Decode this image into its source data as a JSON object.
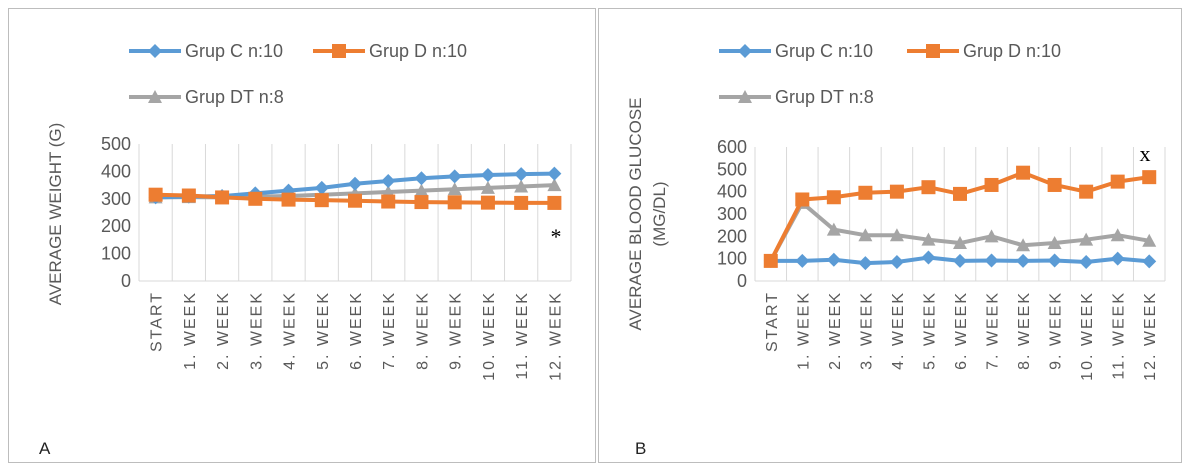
{
  "chart_data": [
    {
      "panel_label": "A",
      "type": "line",
      "ylabel": "AVERAGE WEIGHT (G)",
      "xlabel": "",
      "categories": [
        "START",
        "1. WEEK",
        "2. WEEK",
        "3. WEEK",
        "4. WEEK",
        "5. WEEK",
        "6. WEEK",
        "7. WEEK",
        "8. WEEK",
        "9. WEEK",
        "10. WEEK",
        "11. WEEK",
        "12. WEEK"
      ],
      "ylim": [
        0,
        500
      ],
      "yticks": [
        0,
        100,
        200,
        300,
        400,
        500
      ],
      "grid": "vertical",
      "legend": "top",
      "annotation": "*",
      "series": [
        {
          "name": "Grup C n:10",
          "color": "#5b9bd5",
          "marker": "diamond",
          "values": [
            305,
            308,
            310,
            320,
            330,
            340,
            355,
            365,
            375,
            382,
            387,
            390,
            392
          ]
        },
        {
          "name": "Grup D n:10",
          "color": "#ed7d31",
          "marker": "square",
          "values": [
            315,
            312,
            305,
            300,
            297,
            295,
            293,
            290,
            288,
            287,
            286,
            285,
            285
          ]
        },
        {
          "name": "Grup DT n:8",
          "color": "#a5a5a5",
          "marker": "triangle",
          "values": [
            305,
            306,
            305,
            308,
            310,
            315,
            320,
            325,
            330,
            335,
            340,
            345,
            350
          ]
        }
      ]
    },
    {
      "panel_label": "B",
      "type": "line",
      "ylabel": "AVERAGE BLOOD GLUCOSE (MG/DL)",
      "xlabel": "",
      "categories": [
        "START",
        "1. WEEK",
        "2. WEEK",
        "3. WEEK",
        "4. WEEK",
        "5. WEEK",
        "6. WEEK",
        "7. WEEK",
        "8. WEEK",
        "9. WEEK",
        "10. WEEK",
        "11. WEEK",
        "12. WEEK"
      ],
      "ylim": [
        0,
        600
      ],
      "yticks": [
        0,
        100,
        200,
        300,
        400,
        500,
        600
      ],
      "grid": "vertical",
      "legend": "top",
      "annotation": "x",
      "series": [
        {
          "name": "Grup C n:10",
          "color": "#5b9bd5",
          "marker": "diamond",
          "values": [
            90,
            90,
            95,
            80,
            85,
            105,
            90,
            92,
            90,
            92,
            85,
            100,
            88
          ]
        },
        {
          "name": "Grup D n:10",
          "color": "#ed7d31",
          "marker": "square",
          "values": [
            90,
            365,
            375,
            395,
            400,
            420,
            390,
            430,
            485,
            430,
            400,
            445,
            465
          ]
        },
        {
          "name": "Grup DT n:8",
          "color": "#a5a5a5",
          "marker": "triangle",
          "values": [
            90,
            350,
            230,
            205,
            205,
            185,
            170,
            200,
            160,
            170,
            185,
            205,
            180
          ]
        }
      ]
    }
  ]
}
